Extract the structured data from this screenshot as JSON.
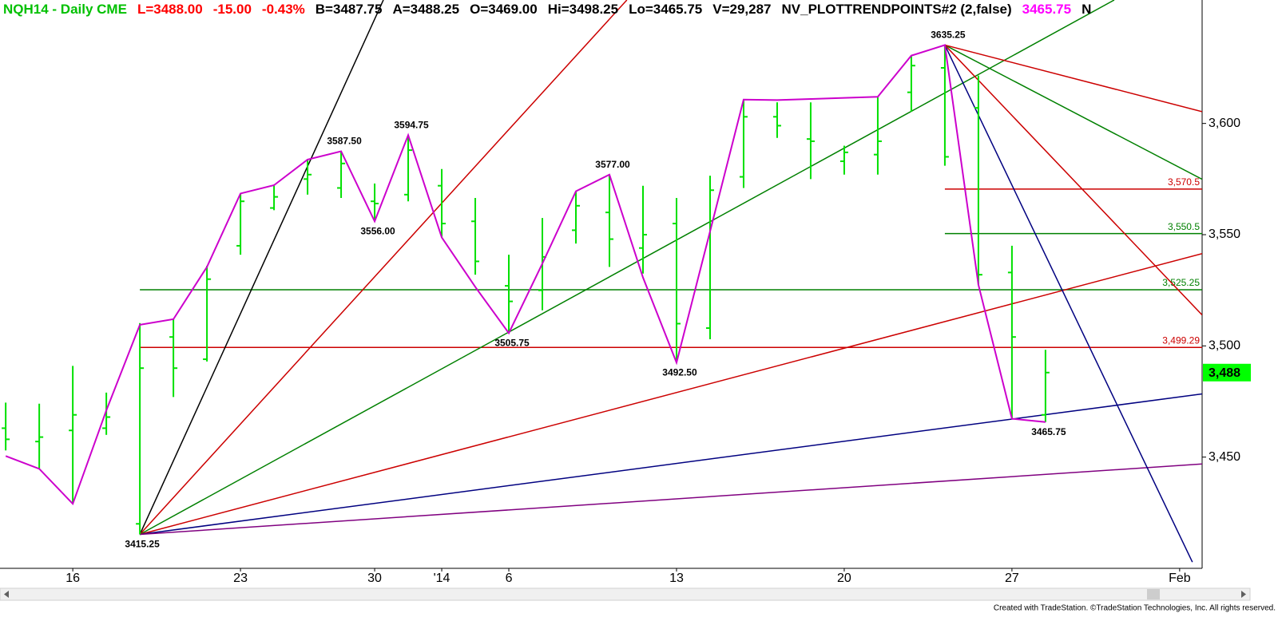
{
  "chart_data": {
    "type": "ohlc",
    "header": [
      {
        "text": "NQH14 - Daily  CME",
        "color": "#00c000"
      },
      {
        "text": "L=3488.00",
        "color": "#ff0000"
      },
      {
        "text": "-15.00",
        "color": "#ff0000"
      },
      {
        "text": "-0.43%",
        "color": "#ff0000"
      },
      {
        "text": "B=3487.75",
        "color": "#000000"
      },
      {
        "text": "A=3488.25",
        "color": "#000000"
      },
      {
        "text": "O=3469.00",
        "color": "#000000"
      },
      {
        "text": "Hi=3498.25",
        "color": "#000000"
      },
      {
        "text": "Lo=3465.75",
        "color": "#000000"
      },
      {
        "text": "V=29,287",
        "color": "#000000"
      },
      {
        "text": "NV_PLOTTRENDPOINTS#2 (2,false)",
        "color": "#000000"
      },
      {
        "text": "3465.75",
        "color": "#ff00ff"
      },
      {
        "text": "N",
        "color": "#000000"
      }
    ],
    "categories": [
      null,
      null,
      "16",
      null,
      null,
      null,
      null,
      "23",
      null,
      null,
      null,
      "30",
      null,
      "'14",
      null,
      "6",
      null,
      null,
      null,
      null,
      "13",
      null,
      null,
      null,
      null,
      "20",
      null,
      null,
      null,
      null,
      "27",
      null,
      null,
      null,
      null,
      "Feb"
    ],
    "xlim": [
      -0.17,
      35.67
    ],
    "ylim": [
      3400,
      3655.5
    ],
    "yticks": [
      {
        "value": 3450,
        "label": "3,450"
      },
      {
        "value": 3500,
        "label": "3,500"
      },
      {
        "value": 3550,
        "label": "3,550"
      },
      {
        "value": 3600,
        "label": "3,600"
      }
    ],
    "ohlc": {
      "color": "#00e000",
      "open": [
        3463,
        3457,
        3462,
        3463,
        3420,
        3504,
        3494,
        3545,
        3562,
        3575,
        3571,
        3565,
        3568,
        3572,
        3556,
        3527,
        3525,
        3552,
        3560,
        3544,
        3555,
        3508,
        3576,
        3603,
        3593,
        3583,
        3586,
        3614,
        3625,
        3607,
        3533,
        3469,
        null,
        null,
        null,
        null
      ],
      "high": [
        3474.5,
        3474,
        3491,
        3479,
        3510.25,
        3512,
        3536,
        3568.5,
        3572,
        3584,
        3587.5,
        3573,
        3594.75,
        3579.5,
        3566.5,
        3541,
        3557.5,
        3569.5,
        3577,
        3572,
        3566.5,
        3576.5,
        3610.75,
        3609.5,
        3609.5,
        3590,
        3612,
        3630.5,
        3635.25,
        3621.5,
        3545,
        3498.25,
        null,
        null,
        null,
        null
      ],
      "low": [
        3453,
        3445,
        3429,
        3460,
        3415.25,
        3477,
        3493,
        3541,
        3561,
        3568,
        3566.5,
        3556,
        3565,
        3549,
        3532,
        3505.75,
        3516,
        3546,
        3535.5,
        3532.5,
        3492.5,
        3503,
        3571,
        3593.5,
        3575,
        3577,
        3577,
        3605.25,
        3581,
        3527.5,
        3467.25,
        3465.75,
        null,
        null,
        null,
        null
      ],
      "close": [
        3458,
        3459,
        3469,
        3468,
        3490,
        3490,
        3530,
        3565,
        3567,
        3577,
        3582,
        3564,
        3588,
        3555,
        3538,
        3520,
        3540,
        3563,
        3548,
        3550,
        3510,
        3570,
        3603,
        3599,
        3592,
        3587,
        3592,
        3626,
        3585,
        3532,
        3504,
        3488,
        null,
        null,
        null,
        null
      ]
    },
    "swing": {
      "color": "#cc00cc",
      "values": [
        3450.5,
        3444.75,
        3429,
        3471,
        3509.5,
        3512,
        3535.5,
        3568.5,
        3572.25,
        3583.75,
        3587.5,
        3556,
        3594.75,
        3548.75,
        3526.5,
        3505.75,
        3537,
        3569.5,
        3577,
        3530.75,
        3492.5,
        3551.5,
        3610.75,
        3610.5,
        3611,
        3611.5,
        3612,
        3630.5,
        3635.25,
        3527.5,
        3467.25,
        3465.75,
        null,
        null,
        null,
        null
      ],
      "value_labels": [
        null,
        null,
        null,
        null,
        null,
        null,
        null,
        null,
        null,
        null,
        "3587.50",
        "3556.00",
        "3594.75",
        null,
        null,
        "3505.75",
        null,
        null,
        "3577.00",
        null,
        "3492.50",
        null,
        null,
        null,
        null,
        null,
        null,
        null,
        "3635.25",
        null,
        null,
        "3465.75",
        null,
        null,
        null,
        null
      ]
    },
    "annotations": [
      {
        "x": 4,
        "value": 3415.25,
        "label": "3415.25"
      }
    ],
    "levels": [
      {
        "value": 3570.5,
        "label": "3,570.5",
        "color": "#cc0000",
        "from": 28
      },
      {
        "value": 3550.5,
        "label": "3,550.5",
        "color": "#008000",
        "from": 28
      },
      {
        "value": 3525.25,
        "label": "3,525.25",
        "color": "#008000",
        "from": 4
      },
      {
        "value": 3499.29,
        "label": "3,499.29",
        "color": "#cc0000",
        "from": 4
      }
    ],
    "fans": [
      {
        "color": "#000000",
        "x": [
          4,
          11.26
        ],
        "values": [
          3415.25,
          3655.5
        ]
      },
      {
        "color": "#cc0000",
        "x": [
          4,
          18.52
        ],
        "values": [
          3415.25,
          3655.5
        ]
      },
      {
        "color": "#008000",
        "x": [
          4,
          33.05
        ],
        "values": [
          3415.25,
          3655.5
        ]
      },
      {
        "color": "#cc0000",
        "x": [
          4,
          35.67
        ],
        "values": [
          3415.25,
          3541.5
        ]
      },
      {
        "color": "#000080",
        "x": [
          4,
          35.67
        ],
        "values": [
          3415.25,
          3478.4
        ]
      },
      {
        "color": "#800080",
        "x": [
          4,
          35.67
        ],
        "values": [
          3415.25,
          3446.9
        ]
      },
      {
        "color": "#000080",
        "x": [
          28,
          35.38
        ],
        "values": [
          3635.25,
          3402.8
        ]
      },
      {
        "color": "#cc0000",
        "x": [
          28,
          35.67
        ],
        "values": [
          3635.25,
          3513.9
        ]
      },
      {
        "color": "#008000",
        "x": [
          28,
          35.67
        ],
        "values": [
          3635.25,
          3574.9
        ]
      },
      {
        "color": "#cc0000",
        "x": [
          28,
          35.67
        ],
        "values": [
          3635.25,
          3605.3
        ]
      }
    ],
    "last_price": {
      "value": 3488,
      "label": "3,488",
      "color": "#00ff00"
    },
    "footer": "Created with TradeStation. ©TradeStation Technologies, Inc. All rights reserved."
  }
}
